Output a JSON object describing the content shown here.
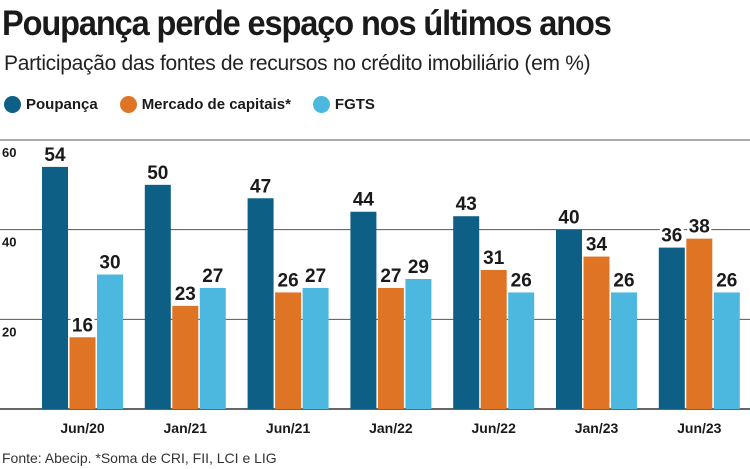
{
  "chart_data": {
    "type": "bar",
    "title": "Poupança perde espaço nos últimos anos",
    "subtitle": "Participação das fontes de recursos no crédito imobiliário (em %)",
    "categories": [
      "Jun/20",
      "Jan/21",
      "Jun/21",
      "Jan/22",
      "Jun/22",
      "Jan/23",
      "Jun/23"
    ],
    "series": [
      {
        "name": "Poupança",
        "color": "#0d5f86",
        "values": [
          54,
          50,
          47,
          44,
          43,
          40,
          36
        ]
      },
      {
        "name": "Mercado de capitais*",
        "color": "#e07425",
        "values": [
          16,
          23,
          26,
          27,
          31,
          34,
          38
        ]
      },
      {
        "name": "FGTS",
        "color": "#4cb8e0",
        "values": [
          30,
          27,
          27,
          29,
          26,
          26,
          26
        ]
      }
    ],
    "yticks": [
      20,
      40,
      60
    ],
    "ylim": [
      0,
      60
    ],
    "grid": true,
    "legend": "top-left",
    "source": "Fonte: Abecip. *Soma de CRI, FII, LCI e LIG"
  }
}
